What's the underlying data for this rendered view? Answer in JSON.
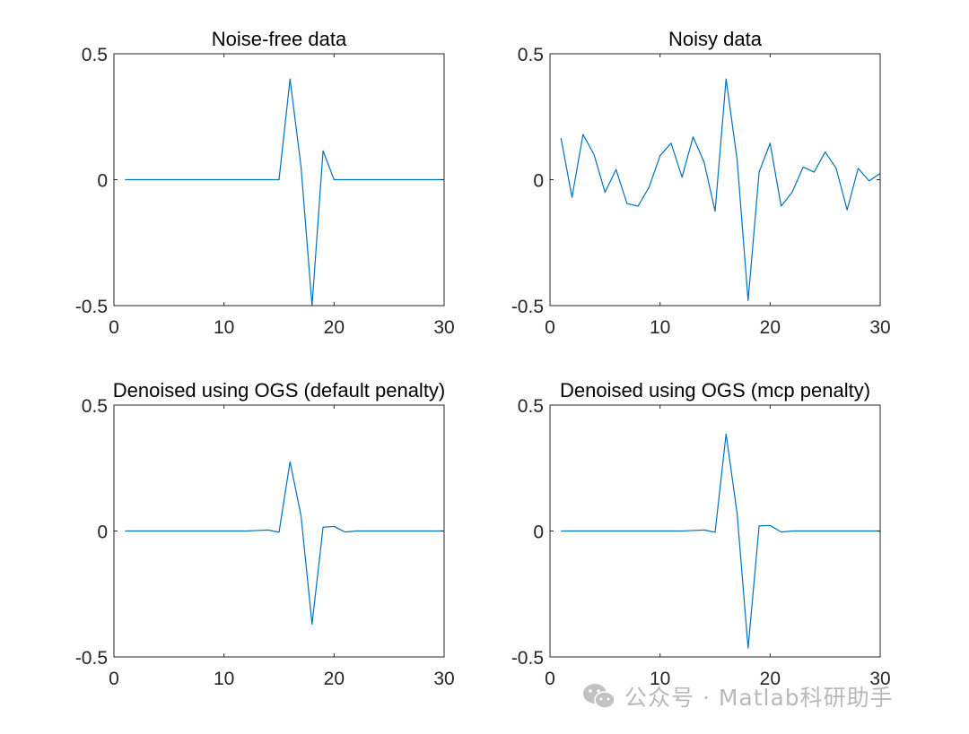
{
  "colors": {
    "line": "#0072bd",
    "axes": "#262626",
    "background": "#ffffff"
  },
  "watermark": {
    "text": "公众号 · Matlab科研助手",
    "icon": "wechat-icon"
  },
  "chart_data": [
    {
      "type": "line",
      "title": "Noise-free data",
      "xlabel": "",
      "ylabel": "",
      "xlim": [
        0,
        30
      ],
      "ylim": [
        -0.5,
        0.5
      ],
      "xticks": [
        0,
        10,
        20,
        30
      ],
      "yticks": [
        -0.5,
        0,
        0.5
      ],
      "xtick_labels": [
        "0",
        "10",
        "20",
        "30"
      ],
      "ytick_labels": [
        "-0.5",
        "0",
        "0.5"
      ],
      "grid": false,
      "series": [
        {
          "x": [
            1,
            2,
            3,
            4,
            5,
            6,
            7,
            8,
            9,
            10,
            11,
            12,
            13,
            14,
            15,
            16,
            17,
            18,
            19,
            20,
            21,
            22,
            23,
            24,
            25,
            26,
            27,
            28,
            29,
            30
          ],
          "values": [
            0,
            0,
            0,
            0,
            0,
            0,
            0,
            0,
            0,
            0,
            0,
            0,
            0,
            0,
            0,
            0.4,
            0.05,
            -0.5,
            0.115,
            0,
            0,
            0,
            0,
            0,
            0,
            0,
            0,
            0,
            0,
            0
          ]
        }
      ]
    },
    {
      "type": "line",
      "title": "Noisy data",
      "xlabel": "",
      "ylabel": "",
      "xlim": [
        0,
        30
      ],
      "ylim": [
        -0.5,
        0.5
      ],
      "xticks": [
        0,
        10,
        20,
        30
      ],
      "yticks": [
        -0.5,
        0,
        0.5
      ],
      "xtick_labels": [
        "0",
        "10",
        "20",
        "30"
      ],
      "ytick_labels": [
        "-0.5",
        "0",
        "0.5"
      ],
      "grid": false,
      "series": [
        {
          "x": [
            1,
            2,
            3,
            4,
            5,
            6,
            7,
            8,
            9,
            10,
            11,
            12,
            13,
            14,
            15,
            16,
            17,
            18,
            19,
            20,
            21,
            22,
            23,
            24,
            25,
            26,
            27,
            28,
            29,
            30
          ],
          "values": [
            0.165,
            -0.07,
            0.18,
            0.1,
            -0.05,
            0.04,
            -0.095,
            -0.105,
            -0.03,
            0.095,
            0.145,
            0.01,
            0.17,
            0.07,
            -0.125,
            0.4,
            0.08,
            -0.48,
            0.03,
            0.145,
            -0.105,
            -0.05,
            0.05,
            0.03,
            0.11,
            0.045,
            -0.12,
            0.045,
            -0.005,
            0.025
          ]
        }
      ]
    },
    {
      "type": "line",
      "title": "Denoised using OGS (default penalty)",
      "xlabel": "",
      "ylabel": "",
      "xlim": [
        0,
        30
      ],
      "ylim": [
        -0.5,
        0.5
      ],
      "xticks": [
        0,
        10,
        20,
        30
      ],
      "yticks": [
        -0.5,
        0,
        0.5
      ],
      "xtick_labels": [
        "0",
        "10",
        "20",
        "30"
      ],
      "ytick_labels": [
        "-0.5",
        "0",
        "0.5"
      ],
      "grid": false,
      "series": [
        {
          "x": [
            1,
            2,
            3,
            4,
            5,
            6,
            7,
            8,
            9,
            10,
            11,
            12,
            13,
            14,
            15,
            16,
            17,
            18,
            19,
            20,
            21,
            22,
            23,
            24,
            25,
            26,
            27,
            28,
            29,
            30
          ],
          "values": [
            0,
            0,
            0,
            0,
            0,
            0,
            0,
            0,
            0,
            0,
            0,
            0,
            0.002,
            0.004,
            -0.005,
            0.275,
            0.06,
            -0.37,
            0.015,
            0.018,
            -0.004,
            0,
            0,
            0,
            0,
            0,
            0,
            0,
            0,
            0
          ]
        }
      ]
    },
    {
      "type": "line",
      "title": "Denoised using OGS (mcp penalty)",
      "xlabel": "",
      "ylabel": "",
      "xlim": [
        0,
        30
      ],
      "ylim": [
        -0.5,
        0.5
      ],
      "xticks": [
        0,
        10,
        20,
        30
      ],
      "yticks": [
        -0.5,
        0,
        0.5
      ],
      "xtick_labels": [
        "0",
        "10",
        "20",
        "30"
      ],
      "ytick_labels": [
        "-0.5",
        "0",
        "0.5"
      ],
      "grid": false,
      "series": [
        {
          "x": [
            1,
            2,
            3,
            4,
            5,
            6,
            7,
            8,
            9,
            10,
            11,
            12,
            13,
            14,
            15,
            16,
            17,
            18,
            19,
            20,
            21,
            22,
            23,
            24,
            25,
            26,
            27,
            28,
            29,
            30
          ],
          "values": [
            0,
            0,
            0,
            0,
            0,
            0,
            0,
            0,
            0,
            0,
            0,
            0,
            0.002,
            0.004,
            -0.005,
            0.385,
            0.07,
            -0.465,
            0.02,
            0.022,
            -0.004,
            0,
            0,
            0,
            0,
            0,
            0,
            0,
            0,
            0
          ]
        }
      ]
    }
  ]
}
